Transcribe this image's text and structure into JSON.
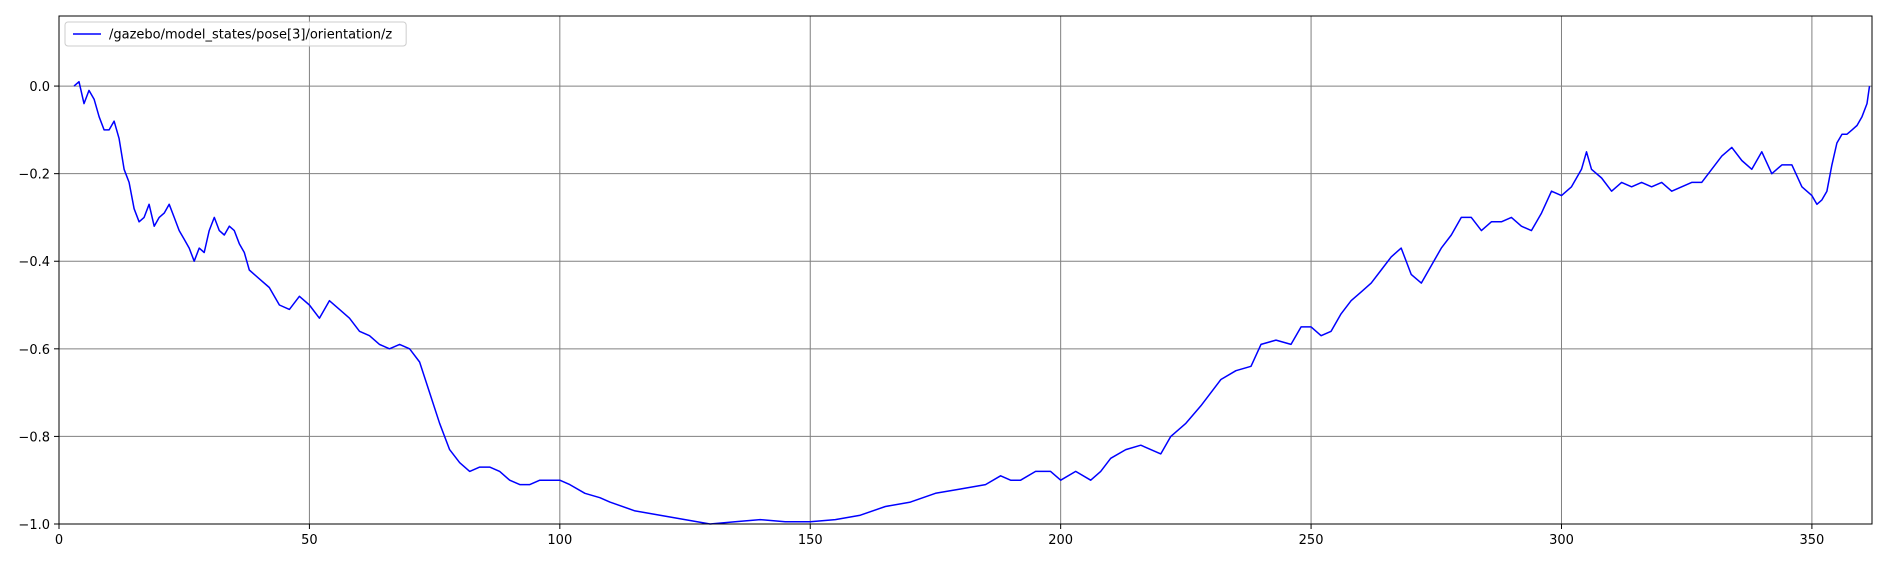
{
  "chart_data": {
    "type": "line",
    "title": "",
    "xlabel": "",
    "ylabel": "",
    "xlim": [
      0,
      362
    ],
    "ylim": [
      -1.0,
      0.16
    ],
    "grid": true,
    "legend_position": "top-left",
    "xticks": [
      0,
      50,
      100,
      150,
      200,
      250,
      300,
      350
    ],
    "yticks": [
      0.0,
      -0.2,
      -0.4,
      -0.6,
      -0.8,
      -1.0
    ],
    "xtick_labels": [
      "0",
      "50",
      "100",
      "150",
      "200",
      "250",
      "300",
      "350"
    ],
    "ytick_labels": [
      "0.0",
      "−0.2",
      "−0.4",
      "−0.6",
      "−0.8",
      "−1.0"
    ],
    "series": [
      {
        "name": "/gazebo/model_states/pose[3]/orientation/z",
        "color": "#0000ff",
        "points": [
          [
            3.0,
            0.0
          ],
          [
            4.0,
            0.01
          ],
          [
            5.0,
            -0.04
          ],
          [
            6.0,
            -0.01
          ],
          [
            7.0,
            -0.03
          ],
          [
            8.0,
            -0.07
          ],
          [
            9.0,
            -0.1
          ],
          [
            10.0,
            -0.1
          ],
          [
            11.0,
            -0.08
          ],
          [
            12.0,
            -0.12
          ],
          [
            13.0,
            -0.19
          ],
          [
            14.0,
            -0.22
          ],
          [
            15.0,
            -0.28
          ],
          [
            16.0,
            -0.31
          ],
          [
            17.0,
            -0.3
          ],
          [
            18.0,
            -0.27
          ],
          [
            19.0,
            -0.32
          ],
          [
            20.0,
            -0.3
          ],
          [
            21.0,
            -0.29
          ],
          [
            22.0,
            -0.27
          ],
          [
            23.0,
            -0.3
          ],
          [
            24.0,
            -0.33
          ],
          [
            25.0,
            -0.35
          ],
          [
            26.0,
            -0.37
          ],
          [
            27.0,
            -0.4
          ],
          [
            28.0,
            -0.37
          ],
          [
            29.0,
            -0.38
          ],
          [
            30.0,
            -0.33
          ],
          [
            31.0,
            -0.3
          ],
          [
            32.0,
            -0.33
          ],
          [
            33.0,
            -0.34
          ],
          [
            34.0,
            -0.32
          ],
          [
            35.0,
            -0.33
          ],
          [
            36.0,
            -0.36
          ],
          [
            37.0,
            -0.38
          ],
          [
            38.0,
            -0.42
          ],
          [
            39.0,
            -0.43
          ],
          [
            40.0,
            -0.44
          ],
          [
            42.0,
            -0.46
          ],
          [
            44.0,
            -0.5
          ],
          [
            46.0,
            -0.51
          ],
          [
            48.0,
            -0.48
          ],
          [
            50.0,
            -0.5
          ],
          [
            52.0,
            -0.53
          ],
          [
            54.0,
            -0.49
          ],
          [
            56.0,
            -0.51
          ],
          [
            58.0,
            -0.53
          ],
          [
            60.0,
            -0.56
          ],
          [
            62.0,
            -0.57
          ],
          [
            64.0,
            -0.59
          ],
          [
            66.0,
            -0.6
          ],
          [
            68.0,
            -0.59
          ],
          [
            70.0,
            -0.6
          ],
          [
            72.0,
            -0.63
          ],
          [
            74.0,
            -0.7
          ],
          [
            76.0,
            -0.77
          ],
          [
            78.0,
            -0.83
          ],
          [
            80.0,
            -0.86
          ],
          [
            82.0,
            -0.88
          ],
          [
            84.0,
            -0.87
          ],
          [
            86.0,
            -0.87
          ],
          [
            88.0,
            -0.88
          ],
          [
            90.0,
            -0.9
          ],
          [
            92.0,
            -0.91
          ],
          [
            94.0,
            -0.91
          ],
          [
            96.0,
            -0.9
          ],
          [
            98.0,
            -0.9
          ],
          [
            100.0,
            -0.9
          ],
          [
            102.0,
            -0.91
          ],
          [
            105.0,
            -0.93
          ],
          [
            108.0,
            -0.94
          ],
          [
            110.0,
            -0.95
          ],
          [
            115.0,
            -0.97
          ],
          [
            120.0,
            -0.98
          ],
          [
            125.0,
            -0.99
          ],
          [
            130.0,
            -1.0
          ],
          [
            135.0,
            -0.995
          ],
          [
            140.0,
            -0.99
          ],
          [
            145.0,
            -0.995
          ],
          [
            150.0,
            -0.995
          ],
          [
            155.0,
            -0.99
          ],
          [
            160.0,
            -0.98
          ],
          [
            165.0,
            -0.96
          ],
          [
            170.0,
            -0.95
          ],
          [
            175.0,
            -0.93
          ],
          [
            180.0,
            -0.92
          ],
          [
            185.0,
            -0.91
          ],
          [
            188.0,
            -0.89
          ],
          [
            190.0,
            -0.9
          ],
          [
            192.0,
            -0.9
          ],
          [
            195.0,
            -0.88
          ],
          [
            198.0,
            -0.88
          ],
          [
            200.0,
            -0.9
          ],
          [
            203.0,
            -0.88
          ],
          [
            206.0,
            -0.9
          ],
          [
            208.0,
            -0.88
          ],
          [
            210.0,
            -0.85
          ],
          [
            213.0,
            -0.83
          ],
          [
            216.0,
            -0.82
          ],
          [
            220.0,
            -0.84
          ],
          [
            222.0,
            -0.8
          ],
          [
            225.0,
            -0.77
          ],
          [
            228.0,
            -0.73
          ],
          [
            232.0,
            -0.67
          ],
          [
            235.0,
            -0.65
          ],
          [
            238.0,
            -0.64
          ],
          [
            240.0,
            -0.59
          ],
          [
            243.0,
            -0.58
          ],
          [
            246.0,
            -0.59
          ],
          [
            248.0,
            -0.55
          ],
          [
            250.0,
            -0.55
          ],
          [
            252.0,
            -0.57
          ],
          [
            254.0,
            -0.56
          ],
          [
            256.0,
            -0.52
          ],
          [
            258.0,
            -0.49
          ],
          [
            260.0,
            -0.47
          ],
          [
            262.0,
            -0.45
          ],
          [
            264.0,
            -0.42
          ],
          [
            266.0,
            -0.39
          ],
          [
            268.0,
            -0.37
          ],
          [
            270.0,
            -0.43
          ],
          [
            272.0,
            -0.45
          ],
          [
            274.0,
            -0.41
          ],
          [
            276.0,
            -0.37
          ],
          [
            278.0,
            -0.34
          ],
          [
            280.0,
            -0.3
          ],
          [
            282.0,
            -0.3
          ],
          [
            284.0,
            -0.33
          ],
          [
            286.0,
            -0.31
          ],
          [
            288.0,
            -0.31
          ],
          [
            290.0,
            -0.3
          ],
          [
            292.0,
            -0.32
          ],
          [
            294.0,
            -0.33
          ],
          [
            296.0,
            -0.29
          ],
          [
            298.0,
            -0.24
          ],
          [
            300.0,
            -0.25
          ],
          [
            302.0,
            -0.23
          ],
          [
            304.0,
            -0.19
          ],
          [
            305.0,
            -0.15
          ],
          [
            306.0,
            -0.19
          ],
          [
            308.0,
            -0.21
          ],
          [
            310.0,
            -0.24
          ],
          [
            312.0,
            -0.22
          ],
          [
            314.0,
            -0.23
          ],
          [
            316.0,
            -0.22
          ],
          [
            318.0,
            -0.23
          ],
          [
            320.0,
            -0.22
          ],
          [
            322.0,
            -0.24
          ],
          [
            324.0,
            -0.23
          ],
          [
            326.0,
            -0.22
          ],
          [
            328.0,
            -0.22
          ],
          [
            330.0,
            -0.19
          ],
          [
            332.0,
            -0.16
          ],
          [
            334.0,
            -0.14
          ],
          [
            336.0,
            -0.17
          ],
          [
            338.0,
            -0.19
          ],
          [
            340.0,
            -0.15
          ],
          [
            342.0,
            -0.2
          ],
          [
            344.0,
            -0.18
          ],
          [
            346.0,
            -0.18
          ],
          [
            348.0,
            -0.23
          ],
          [
            350.0,
            -0.25
          ],
          [
            351.0,
            -0.27
          ],
          [
            352.0,
            -0.26
          ],
          [
            353.0,
            -0.24
          ],
          [
            354.0,
            -0.18
          ],
          [
            355.0,
            -0.13
          ],
          [
            356.0,
            -0.11
          ],
          [
            357.0,
            -0.11
          ],
          [
            358.0,
            -0.1
          ],
          [
            359.0,
            -0.09
          ],
          [
            360.0,
            -0.07
          ],
          [
            361.0,
            -0.04
          ],
          [
            361.5,
            0.0
          ]
        ]
      }
    ]
  }
}
